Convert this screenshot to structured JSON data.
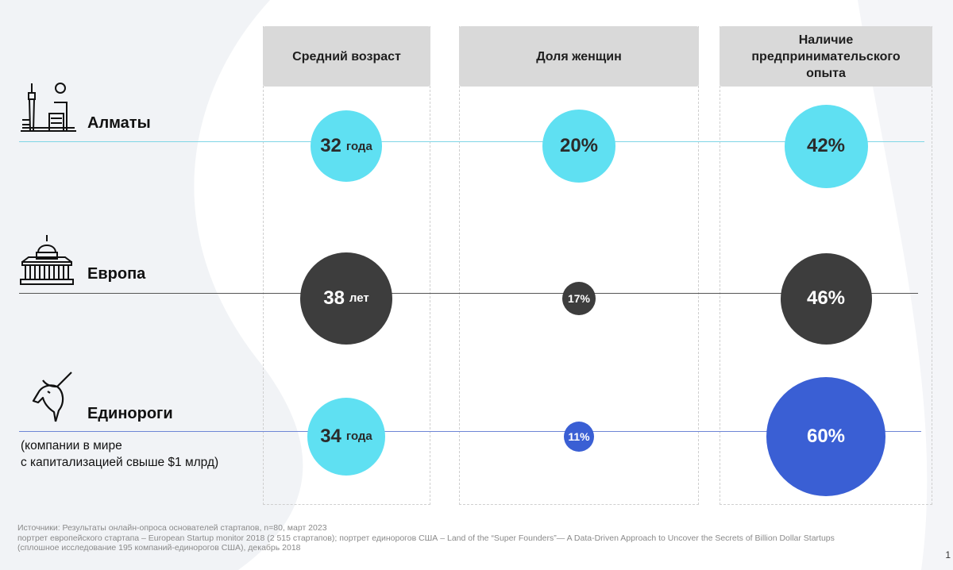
{
  "columns": [
    {
      "label": "Средний возраст"
    },
    {
      "label": "Доля женщин"
    },
    {
      "label": "Наличие предпринимательского опыта"
    }
  ],
  "rows": [
    {
      "label": "Алматы",
      "note_lines": [],
      "icon": "city-skyline-icon",
      "line_color": "#7fd6e6"
    },
    {
      "label": "Европа",
      "note_lines": [],
      "icon": "capitol-building-icon",
      "line_color": "#555555"
    },
    {
      "label": "Единороги",
      "note_lines": [
        "(компании в мире",
        "с капитализацией свыше $1 млрд)"
      ],
      "icon": "unicorn-head-icon",
      "line_color": "#6e86d6"
    }
  ],
  "chart_data": {
    "type": "bubble-matrix",
    "categories": [
      "Средний возраст",
      "Доля женщин",
      "Наличие предпринимательского опыта"
    ],
    "series": [
      {
        "name": "Алматы",
        "color": "#5fe0f2",
        "text_color": "#2b2b2b",
        "cells": [
          {
            "value": 32,
            "text": "32",
            "unit": "года"
          },
          {
            "value": 20,
            "text": "20%",
            "unit": ""
          },
          {
            "value": 42,
            "text": "42%",
            "unit": ""
          }
        ]
      },
      {
        "name": "Европа",
        "color": "#3d3d3d",
        "text_color": "#ffffff",
        "cells": [
          {
            "value": 38,
            "text": "38",
            "unit": "лет"
          },
          {
            "value": 17,
            "text": "17%",
            "unit": ""
          },
          {
            "value": 46,
            "text": "46%",
            "unit": ""
          }
        ]
      },
      {
        "name": "Единороги",
        "color": "#3a5fd4",
        "text_color": "#ffffff",
        "cells": [
          {
            "value": 34,
            "text": "34",
            "unit": "года",
            "color": "#5fe0f2",
            "text_color": "#2b2b2b"
          },
          {
            "value": 11,
            "text": "11%",
            "unit": ""
          },
          {
            "value": 60,
            "text": "60%",
            "unit": ""
          }
        ]
      }
    ]
  },
  "footer_lines": [
    "Источники: Результаты онлайн-опроса основателей стартапов, n=80, март 2023",
    "портрет европейского стартапа – European Startup monitor 2018 (2 515 стартапов); портрет единорогов США – Land of the “Super Founders”— A Data-Driven Approach to Uncover the Secrets of Billion Dollar Startups",
    "(сплошное исследование 195 компаний-единорогов США), декабрь 2018"
  ],
  "page_number": "1"
}
